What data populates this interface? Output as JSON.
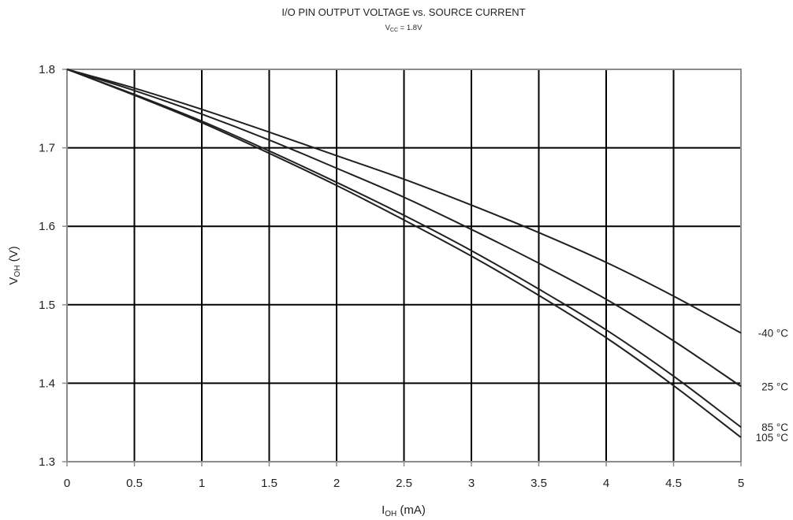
{
  "chart_data": {
    "type": "line",
    "title": "I/O PIN OUTPUT VOLTAGE vs. SOURCE CURRENT",
    "subtitle": {
      "main": "V",
      "sub": "CC",
      "rest": " = 1.8V"
    },
    "xlabel": {
      "main": "I",
      "sub": "OH",
      "rest": " (mA)"
    },
    "ylabel": {
      "main": "V",
      "sub": "OH",
      "rest": " (V)"
    },
    "xlim": [
      0,
      5
    ],
    "ylim": [
      1.3,
      1.8
    ],
    "x_ticks": [
      "0",
      "0.5",
      "1",
      "1.5",
      "2",
      "2.5",
      "3",
      "3.5",
      "4",
      "4.5",
      "5"
    ],
    "y_ticks": [
      "1.3",
      "1.4",
      "1.5",
      "1.6",
      "1.7",
      "1.8"
    ],
    "grid": true,
    "legend": "inline-right",
    "x": [
      0,
      0.5,
      1,
      1.5,
      2,
      2.5,
      3,
      3.5,
      4,
      4.5,
      5
    ],
    "series": [
      {
        "name": "-40 °C",
        "values": [
          1.8,
          1.776,
          1.749,
          1.72,
          1.69,
          1.66,
          1.627,
          1.592,
          1.554,
          1.511,
          1.464
        ]
      },
      {
        "name": "25 °C",
        "values": [
          1.8,
          1.773,
          1.743,
          1.71,
          1.674,
          1.637,
          1.596,
          1.553,
          1.507,
          1.454,
          1.396
        ]
      },
      {
        "name": "85 °C",
        "values": [
          1.8,
          1.768,
          1.734,
          1.696,
          1.656,
          1.614,
          1.569,
          1.52,
          1.468,
          1.409,
          1.344
        ]
      },
      {
        "name": "105 °C",
        "values": [
          1.8,
          1.767,
          1.732,
          1.693,
          1.652,
          1.608,
          1.562,
          1.512,
          1.458,
          1.397,
          1.331
        ]
      }
    ]
  }
}
